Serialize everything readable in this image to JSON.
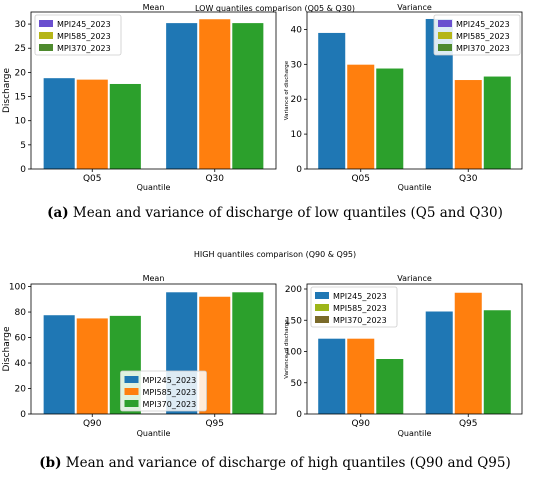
{
  "figures": [
    {
      "suptitle": "LOW quantiles comparison (Q05 & Q30)",
      "caption_label": "(a)",
      "caption_text": " Mean and variance of discharge of low quantiles (Q5 and Q30)"
    },
    {
      "suptitle": "HIGH quantiles comparison (Q90 & Q95)",
      "caption_label": "(b)",
      "caption_text": " Mean and variance of discharge of high quantiles (Q90 and Q95)"
    }
  ],
  "colors": {
    "MPI245_2023": "#1f77b4",
    "MPI585_2023": "#ff7f0e",
    "MPI370_2023": "#2ca02c",
    "legend_low": [
      "#6a4fcf",
      "#b5b518",
      "#4e8a2e"
    ],
    "legend_high_var": [
      "#1f77b4",
      "#9db518",
      "#7a6a2a"
    ]
  },
  "chart_data": [
    {
      "type": "bar",
      "title": "Mean",
      "xlabel": "Quantile",
      "ylabel": "Discharge",
      "categories": [
        "Q05",
        "Q30"
      ],
      "series": [
        {
          "name": "MPI245_2023",
          "values": [
            18.8,
            30.2
          ]
        },
        {
          "name": "MPI585_2023",
          "values": [
            18.5,
            31.0
          ]
        },
        {
          "name": "MPI370_2023",
          "values": [
            17.6,
            30.2
          ]
        }
      ],
      "ylim": [
        0,
        32.5
      ],
      "yticks": [
        0,
        5,
        10,
        15,
        20,
        25,
        30
      ],
      "legend": "top-left",
      "legend_style": "low"
    },
    {
      "type": "bar",
      "title": "Variance",
      "xlabel": "Quantile",
      "ylabel": "Variance of discharge",
      "categories": [
        "Q05",
        "Q30"
      ],
      "series": [
        {
          "name": "MPI245_2023",
          "values": [
            39.0,
            43.0
          ]
        },
        {
          "name": "MPI585_2023",
          "values": [
            29.9,
            25.5
          ]
        },
        {
          "name": "MPI370_2023",
          "values": [
            28.8,
            26.5
          ]
        }
      ],
      "ylim": [
        0,
        45
      ],
      "yticks": [
        0,
        10,
        20,
        30,
        40
      ],
      "legend": "top-right",
      "legend_style": "low"
    },
    {
      "type": "bar",
      "title": "Mean",
      "xlabel": "Quantile",
      "ylabel": "Discharge",
      "categories": [
        "Q90",
        "Q95"
      ],
      "series": [
        {
          "name": "MPI245_2023",
          "values": [
            77.5,
            95.5
          ]
        },
        {
          "name": "MPI585_2023",
          "values": [
            75.0,
            92.0
          ]
        },
        {
          "name": "MPI370_2023",
          "values": [
            77.0,
            95.5
          ]
        }
      ],
      "ylim": [
        0,
        102
      ],
      "yticks": [
        0,
        20,
        40,
        60,
        80,
        100
      ],
      "legend": "lower-center",
      "legend_style": "series"
    },
    {
      "type": "bar",
      "title": "Variance",
      "xlabel": "Quantile",
      "ylabel": "Variance of discharge",
      "categories": [
        "Q90",
        "Q95"
      ],
      "series": [
        {
          "name": "MPI245_2023",
          "values": [
            120.5,
            164.0
          ]
        },
        {
          "name": "MPI585_2023",
          "values": [
            120.5,
            194.0
          ]
        },
        {
          "name": "MPI370_2023",
          "values": [
            88.0,
            166.0
          ]
        }
      ],
      "ylim": [
        0,
        208
      ],
      "yticks": [
        0,
        50,
        100,
        150,
        200
      ],
      "legend": "top-left",
      "legend_style": "high_var"
    }
  ]
}
